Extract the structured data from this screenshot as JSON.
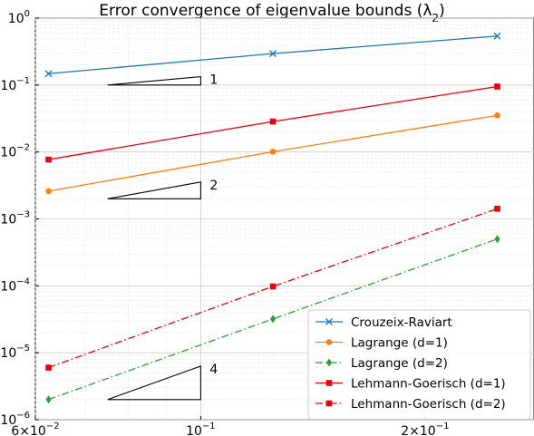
{
  "chart_data": {
    "type": "line",
    "title": "Error convergence of eigenvalue bounds (λ",
    "title_subscript": "2",
    "title_close": ")",
    "xscale": "log",
    "yscale": "log",
    "xlim": [
      0.06,
      0.28
    ],
    "ylim": [
      1e-06,
      1
    ],
    "grid": true,
    "legend_position": "lower-right",
    "x": [
      0.0625,
      0.125,
      0.25
    ],
    "xticks": [
      {
        "value": 0.06,
        "base": "6×10",
        "exp": "−2"
      },
      {
        "value": 0.1,
        "base": "10",
        "exp": "−1"
      },
      {
        "value": 0.2,
        "base": "2×10",
        "exp": "−1"
      }
    ],
    "yticks": [
      {
        "value": 1,
        "base": "10",
        "exp": "0"
      },
      {
        "value": 0.1,
        "base": "10",
        "exp": "−1"
      },
      {
        "value": 0.01,
        "base": "10",
        "exp": "−2"
      },
      {
        "value": 0.001,
        "base": "10",
        "exp": "−3"
      },
      {
        "value": 0.0001,
        "base": "10",
        "exp": "−4"
      },
      {
        "value": 1e-05,
        "base": "10",
        "exp": "−5"
      },
      {
        "value": 1e-06,
        "base": "10",
        "exp": "−6"
      }
    ],
    "series": [
      {
        "name": "Crouzeix-Raviart",
        "values": [
          0.148,
          0.295,
          0.54
        ],
        "color": "#1f77b4",
        "dash": "solid",
        "marker": "x"
      },
      {
        "name": "Lagrange (d=1)",
        "values": [
          0.0026,
          0.0101,
          0.0352
        ],
        "color": "#ff7f0e",
        "dash": "solid",
        "marker": "circle"
      },
      {
        "name": "Lagrange (d=2)",
        "values": [
          2e-06,
          3.2e-05,
          0.0005
        ],
        "color": "#2ca02c",
        "dash": "dashdot",
        "marker": "diamond"
      },
      {
        "name": "Lehmann-Goerisch (d=1)",
        "values": [
          0.0077,
          0.0285,
          0.095
        ],
        "color": "#e8000b",
        "dash": "solid",
        "marker": "square"
      },
      {
        "name": "Lehmann-Goerisch (d=2)",
        "values": [
          6e-06,
          9.8e-05,
          0.00142
        ],
        "color": "#e8000b",
        "dash": "dashdot",
        "marker": "square"
      }
    ],
    "slope_triangles": [
      {
        "label": "1",
        "x0": 0.075,
        "x1": 0.1,
        "y0": 0.1,
        "slope": 1
      },
      {
        "label": "2",
        "x0": 0.075,
        "x1": 0.1,
        "y0": 0.002,
        "slope": 2
      },
      {
        "label": "4",
        "x0": 0.075,
        "x1": 0.1,
        "y0": 2e-06,
        "slope": 4
      }
    ]
  }
}
